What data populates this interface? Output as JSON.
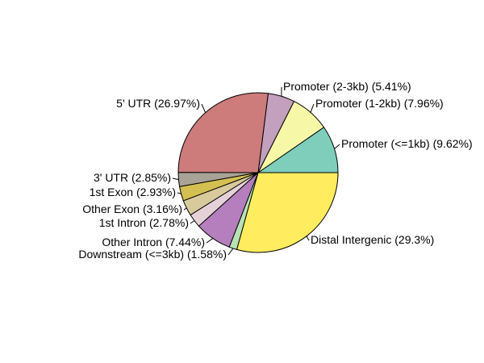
{
  "chart_data": {
    "type": "pie",
    "title": "",
    "direction": "counterclockwise",
    "start": "3 o'clock",
    "slices": [
      {
        "label": "Promoter (<=1kb) (9.62%)",
        "category": "Promoter (<=1kb)",
        "value": 9.62,
        "color": "#7fcdbb"
      },
      {
        "label": "Promoter (1-2kb) (7.96%)",
        "category": "Promoter (1-2kb)",
        "value": 7.96,
        "color": "#f7f7a8"
      },
      {
        "label": "Promoter (2-3kb) (5.41%)",
        "category": "Promoter (2-3kb)",
        "value": 5.41,
        "color": "#c3a0bd"
      },
      {
        "label": "5' UTR (26.97%)",
        "category": "5' UTR",
        "value": 26.97,
        "color": "#cd7b7b"
      },
      {
        "label": "3' UTR (2.85%)",
        "category": "3' UTR",
        "value": 2.85,
        "color": "#a8a396"
      },
      {
        "label": "1st Exon (2.93%)",
        "category": "1st Exon",
        "value": 2.93,
        "color": "#d4c050"
      },
      {
        "label": "Other Exon (3.16%)",
        "category": "Other Exon",
        "value": 3.16,
        "color": "#d8ca9c"
      },
      {
        "label": "1st Intron (2.78%)",
        "category": "1st Intron",
        "value": 2.78,
        "color": "#e4d2d8"
      },
      {
        "label": "Other Intron (7.44%)",
        "category": "Other Intron",
        "value": 7.44,
        "color": "#b47fbc"
      },
      {
        "label": "Downstream (<=3kb) (1.58%)",
        "category": "Downstream (<=3kb)",
        "value": 1.58,
        "color": "#b8e2b4"
      },
      {
        "label": "Distal Intergenic (29.3%)",
        "category": "Distal Intergenic",
        "value": 29.3,
        "color": "#ffed5f"
      }
    ]
  }
}
